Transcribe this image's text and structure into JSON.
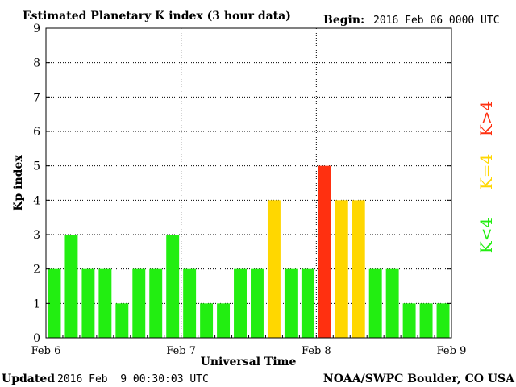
{
  "title": "Estimated Planetary K index (3 hour data)",
  "begin_label": "Begin:",
  "begin_value": "2016 Feb 06 0000 UTC",
  "ylabel": "Kp index",
  "xlabel": "Universal Time",
  "updated_label": "Updated",
  "updated_value": "2016 Feb  9 00:30:03 UTC",
  "source_label": "NOAA/SWPC Boulder, CO USA",
  "legend": [
    {
      "text": "K>4",
      "color": "#ff3010"
    },
    {
      "text": "K=4",
      "color": "#ffd700"
    },
    {
      "text": "K<4",
      "color": "#22ee11"
    }
  ],
  "colors": {
    "below4": "#22ee11",
    "equal4": "#ffd700",
    "above4": "#ff3010",
    "grid": "#000000",
    "background": "#ffffff"
  },
  "chart_data": {
    "type": "bar",
    "title": "Estimated Planetary K index (3 hour data)",
    "xlabel": "Universal Time",
    "ylabel": "Kp index",
    "ylim": [
      0,
      9
    ],
    "yticks": [
      "0",
      "1",
      "2",
      "3",
      "4",
      "5",
      "6",
      "7",
      "8",
      "9"
    ],
    "xticks": [
      "Feb 6",
      "Feb 7",
      "Feb 8",
      "Feb 9"
    ],
    "interval_hours": 3,
    "grid": true,
    "values": [
      2,
      3,
      2,
      2,
      1,
      2,
      2,
      3,
      2,
      1,
      1,
      2,
      2,
      4,
      2,
      2,
      5,
      4,
      4,
      2,
      2,
      1,
      1,
      1
    ]
  }
}
